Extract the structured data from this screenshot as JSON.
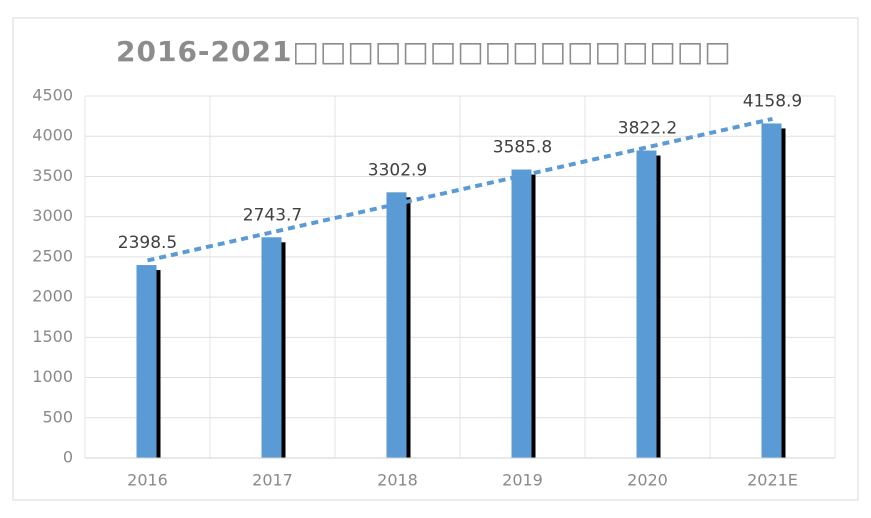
{
  "chart_data": {
    "type": "bar",
    "title": "2016-2021□□□□□□□□□□□□□□□□",
    "categories": [
      "2016",
      "2017",
      "2018",
      "2019",
      "2020",
      "2021E"
    ],
    "values": [
      2398.5,
      2743.7,
      3302.9,
      3585.8,
      3822.2,
      4158.9
    ],
    "color": "#5b9bd5",
    "shadow_color": "#000000",
    "trendline": true,
    "trendline_color": "#5b9bd5",
    "ylim": [
      0,
      4500
    ],
    "yticks": [
      0,
      500,
      1000,
      1500,
      2000,
      2500,
      3000,
      3500,
      4000,
      4500
    ],
    "grid": true
  }
}
